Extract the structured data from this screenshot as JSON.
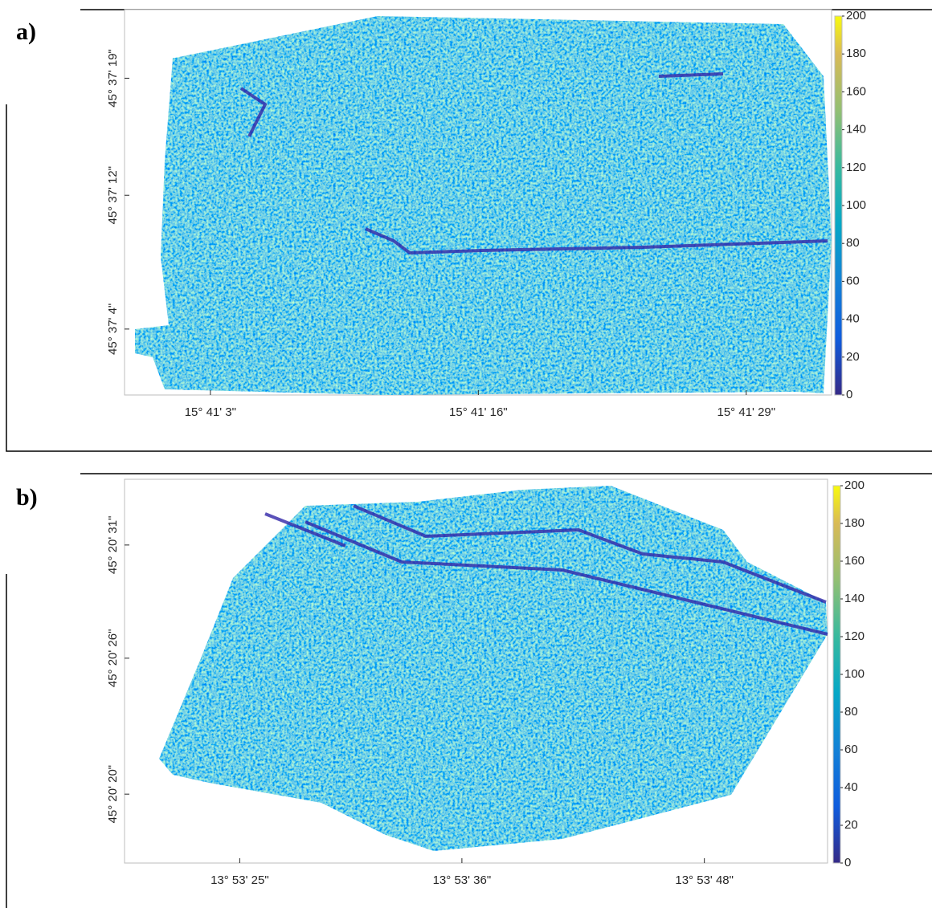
{
  "chart_data": [
    {
      "type": "heatmap",
      "label": "a)",
      "xlim": [
        15.68301,
        15.692539
      ],
      "ylim": [
        45.616683,
        45.623083
      ],
      "xticks": [
        {
          "value": 15.684167,
          "label": "15° 41' 3\""
        },
        {
          "value": 15.687778,
          "label": "15° 41' 16\""
        },
        {
          "value": 15.691389,
          "label": "15° 41' 29\""
        }
      ],
      "yticks": [
        {
          "value": 45.617778,
          "label": "45° 37' 4\""
        },
        {
          "value": 45.62,
          "label": "45° 37' 12\""
        },
        {
          "value": 45.621944,
          "label": "45° 37' 19\""
        }
      ],
      "clim": [
        0,
        200
      ],
      "cticks": [
        0,
        20,
        40,
        60,
        80,
        100,
        120,
        140,
        160,
        180,
        200
      ]
    },
    {
      "type": "heatmap",
      "label": "b)",
      "xlim": [
        13.888694,
        13.898361
      ],
      "ylim": [
        45.338044,
        45.34275
      ],
      "xticks": [
        {
          "value": 13.890278,
          "label": "13° 53' 25\""
        },
        {
          "value": 13.893333,
          "label": "13° 53' 36\""
        },
        {
          "value": 13.896667,
          "label": "13° 53' 48\""
        }
      ],
      "yticks": [
        {
          "value": 45.338889,
          "label": "45° 20' 20\""
        },
        {
          "value": 45.340556,
          "label": "45° 20' 26\""
        },
        {
          "value": 45.341944,
          "label": "45° 20' 31\""
        }
      ],
      "clim": [
        0,
        200
      ],
      "cticks": [
        0,
        20,
        40,
        60,
        80,
        100,
        120,
        140,
        160,
        180,
        200
      ]
    }
  ]
}
